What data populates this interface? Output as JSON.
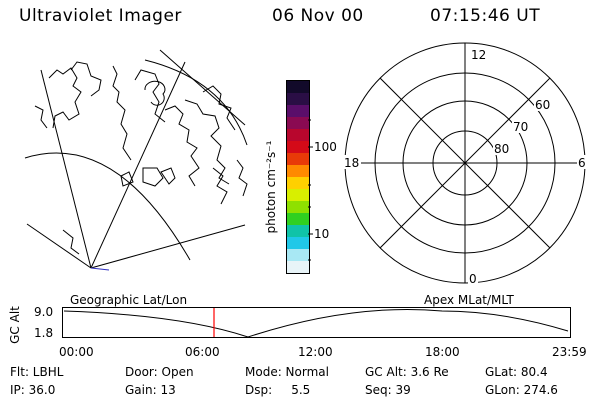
{
  "header": {
    "title": "Ultraviolet Imager",
    "date": "06 Nov 00",
    "time": "07:15:46 UT"
  },
  "colorbar": {
    "unit": "photon cm⁻²s⁻¹",
    "ticks": [
      "100",
      "10"
    ],
    "colors": [
      "#120a2a",
      "#2a0e45",
      "#5a0e6a",
      "#8a0a52",
      "#b8062d",
      "#d40a18",
      "#e83a08",
      "#ff8a00",
      "#ffd000",
      "#d8ef00",
      "#8fe000",
      "#30d020",
      "#10c3a8",
      "#20c8e8",
      "#a8e8f4",
      "#e8f4f8"
    ]
  },
  "polar_plot": {
    "mlt_labels": {
      "top": "12",
      "left": "18",
      "right": "6",
      "bottom": "0"
    },
    "lat_labels": [
      "60",
      "70",
      "80"
    ]
  },
  "map_labels": {
    "left": "Geographic Lat/Lon",
    "right": "Apex MLat/MLT"
  },
  "altitude_plot": {
    "ylabel": "GC Alt",
    "yticks": [
      "9.0",
      "1.8"
    ],
    "xticks": [
      "00:00",
      "06:00",
      "12:00",
      "18:00",
      "23:59"
    ],
    "marker_color": "#ff0000"
  },
  "status": {
    "row1": [
      {
        "label": "Flt: LBHL"
      },
      {
        "label": "Door: Open"
      },
      {
        "label": "Mode: Normal"
      },
      {
        "label": "GC Alt: 3.6 Re"
      },
      {
        "label": "GLat: 80.4"
      }
    ],
    "row2": [
      {
        "label": "IP: 36.0"
      },
      {
        "label": "Gain: 13"
      },
      {
        "label": "Dsp:     5.5"
      },
      {
        "label": "Seq: 39"
      },
      {
        "label": "GLon: 274.6"
      }
    ]
  }
}
